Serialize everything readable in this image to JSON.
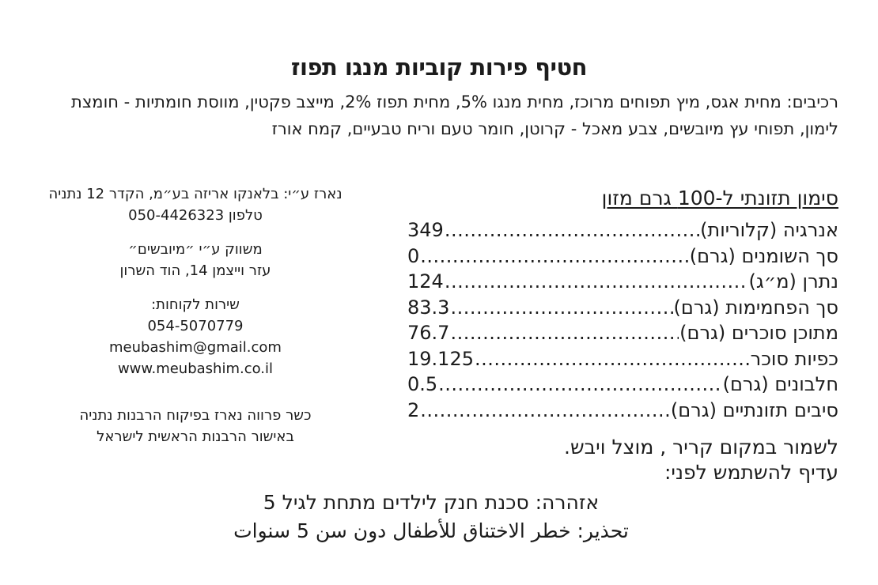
{
  "colors": {
    "text": "#1c1c1c",
    "background": "#ffffff"
  },
  "product": {
    "title": "חטיף פירות קוביות מנגו תפוז",
    "ingredients": "רכיבים: מחית אגס, מיץ תפוחים מרוכז, מחית מנגו 5%, מחית תפוז 2%, מייצב פקטין, מווסת חומתיות - חומצת לימון, תפוחי עץ מיובשים, צבע מאכל - קרוטן, חומר טעם וריח טבעיים, קמח אורז"
  },
  "left_column": {
    "packer": {
      "line1": "נארז ע״י: בלאנקו אריזה בע״מ, הקדר 12 נתניה",
      "line2": "טלפון 050-4426323"
    },
    "distributor": {
      "line1": "משווק ע״י ״מיובשים״",
      "line2": "עזר וייצמן 14, הוד השרון"
    },
    "customer_service": {
      "label": "שירות לקוחות:",
      "phone": "054-5070779",
      "email": "meubashim@gmail.com",
      "website": "www.meubashim.co.il"
    },
    "kosher": {
      "line1": "כשר פרווה נארז בפיקוח הרבנות נתניה",
      "line2": "באישור הרבנות הראשית לישראל"
    }
  },
  "nutrition": {
    "header": "סימון תזונתי ל-100 גרם מזון",
    "rows": [
      {
        "label": "אנרגיה (קלוריות)",
        "value": "349"
      },
      {
        "label": "סך השומנים (גרם)",
        "value": "0"
      },
      {
        "label": "נתרן (מ״ג)",
        "value": "124"
      },
      {
        "label": "סך הפחמימות (גרם)",
        "value": "83.3"
      },
      {
        "label": "מתוכן סוכרים (גרם)",
        "value": "76.7"
      },
      {
        "label": "כפיות סוכר",
        "value": "19.125"
      },
      {
        "label": "חלבונים (גרם)",
        "value": "0.5"
      },
      {
        "label": "סיבים תזונתיים (גרם)",
        "value": "2"
      }
    ]
  },
  "storage": {
    "line1": "לשמור במקום קריר , מוצל ויבש.",
    "line2": "עדיף להשתמש לפני:"
  },
  "warnings": {
    "hebrew": "אזהרה: סכנת חנק לילדים מתחת לגיל 5",
    "arabic": "تحذير: خطر الاختناق للأطفال دون سن 5 سنوات"
  }
}
